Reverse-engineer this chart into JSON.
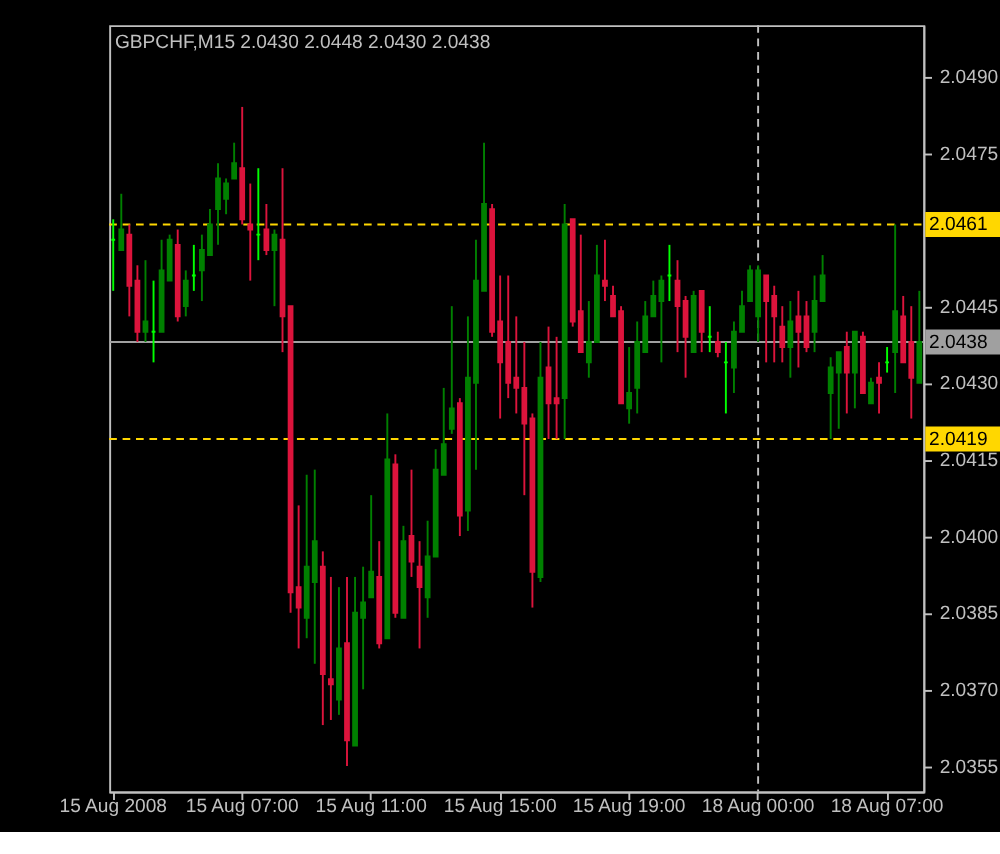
{
  "chart_data": {
    "type": "candlestick",
    "title": "GBPCHF,M15  2.0430 2.0448 2.0430 2.0438",
    "categories": [
      "15 Aug 2008",
      null,
      null,
      null,
      null,
      null,
      null,
      null,
      null,
      null,
      null,
      null,
      null,
      null,
      null,
      null,
      "15 Aug 07:00",
      null,
      null,
      null,
      null,
      null,
      null,
      null,
      null,
      null,
      null,
      null,
      null,
      null,
      null,
      null,
      "15 Aug 11:00",
      null,
      null,
      null,
      null,
      null,
      null,
      null,
      null,
      null,
      null,
      null,
      null,
      null,
      null,
      null,
      "15 Aug 15:00",
      null,
      null,
      null,
      null,
      null,
      null,
      null,
      null,
      null,
      null,
      null,
      null,
      null,
      null,
      null,
      "15 Aug 19:00",
      null,
      null,
      null,
      null,
      null,
      null,
      null,
      null,
      null,
      null,
      null,
      null,
      null,
      null,
      null,
      "18 Aug 00:00",
      null,
      null,
      null,
      null,
      null,
      null,
      null,
      null,
      null,
      null,
      null,
      null,
      null,
      null,
      null,
      "18 Aug 07:00",
      null,
      null,
      null,
      null
    ],
    "ohlc": [
      [
        2.0458,
        2.0462,
        2.0448,
        2.0458
      ],
      [
        2.0456,
        2.0467,
        2.0456,
        2.046
      ],
      [
        2.0459,
        2.0461,
        2.0443,
        2.0449
      ],
      [
        2.045,
        2.0453,
        2.0438,
        2.044
      ],
      [
        2.044,
        2.0454,
        2.0438,
        2.0442
      ],
      [
        2.044,
        2.045,
        2.0434,
        2.044
      ],
      [
        2.044,
        2.0458,
        2.044,
        2.0452
      ],
      [
        2.045,
        2.0459,
        2.045,
        2.0458
      ],
      [
        2.0457,
        2.046,
        2.0442,
        2.0443
      ],
      [
        2.0445,
        2.0452,
        2.0443,
        2.045
      ],
      [
        2.0451,
        2.0457,
        2.0448,
        2.0451
      ],
      [
        2.0452,
        2.0459,
        2.0446,
        2.0456
      ],
      [
        2.0455,
        2.0464,
        2.0455,
        2.0461
      ],
      [
        2.0464,
        2.0473,
        2.0457,
        2.047
      ],
      [
        2.0466,
        2.047,
        2.0463,
        2.0469
      ],
      [
        2.047,
        2.0477,
        2.047,
        2.0473
      ],
      [
        2.0472,
        2.0484,
        2.0461,
        2.0462
      ],
      [
        2.0461,
        2.0469,
        2.045,
        2.046
      ],
      [
        2.0459,
        2.0472,
        2.0454,
        2.0459
      ],
      [
        2.046,
        2.0465,
        2.0455,
        2.0456
      ],
      [
        2.0456,
        2.046,
        2.0445,
        2.0459
      ],
      [
        2.0458,
        2.0472,
        2.0436,
        2.0443
      ],
      [
        2.0445,
        2.0445,
        2.0385,
        2.0389
      ],
      [
        2.039,
        2.0406,
        2.0378,
        2.0386
      ],
      [
        2.0384,
        2.0412,
        2.038,
        2.0394
      ],
      [
        2.0391,
        2.0413,
        2.0375,
        2.0399
      ],
      [
        2.0394,
        2.0397,
        2.0363,
        2.0373
      ],
      [
        2.0372,
        2.0392,
        2.0364,
        2.0371
      ],
      [
        2.0368,
        2.039,
        2.0365,
        2.0378
      ],
      [
        2.0379,
        2.0392,
        2.0355,
        2.036
      ],
      [
        2.0359,
        2.0392,
        2.0359,
        2.0385
      ],
      [
        2.0384,
        2.0394,
        2.037,
        2.0387
      ],
      [
        2.0388,
        2.0408,
        2.0388,
        2.0393
      ],
      [
        2.0392,
        2.0399,
        2.0378,
        2.0379
      ],
      [
        2.038,
        2.0424,
        2.038,
        2.0415
      ],
      [
        2.0414,
        2.0416,
        2.0384,
        2.0385
      ],
      [
        2.0384,
        2.0402,
        2.0384,
        2.0399
      ],
      [
        2.04,
        2.0413,
        2.0392,
        2.0395
      ],
      [
        2.0394,
        2.0399,
        2.0378,
        2.039
      ],
      [
        2.0388,
        2.0403,
        2.0384,
        2.0396
      ],
      [
        2.0396,
        2.0417,
        2.0396,
        2.0413
      ],
      [
        2.0412,
        2.0429,
        2.0412,
        2.0418
      ],
      [
        2.0421,
        2.0445,
        2.042,
        2.0425
      ],
      [
        2.0426,
        2.0427,
        2.04,
        2.0404
      ],
      [
        2.0405,
        2.0443,
        2.0401,
        2.0431
      ],
      [
        2.043,
        2.0458,
        2.0413,
        2.045
      ],
      [
        2.0448,
        2.0477,
        2.0448,
        2.0465
      ],
      [
        2.0464,
        2.0465,
        2.0439,
        2.044
      ],
      [
        2.0442,
        2.0451,
        2.0423,
        2.0434
      ],
      [
        2.0438,
        2.0451,
        2.0427,
        2.043
      ],
      [
        2.0431,
        2.0443,
        2.0424,
        2.0429
      ],
      [
        2.0429,
        2.0438,
        2.0408,
        2.0422
      ],
      [
        2.0423,
        2.0424,
        2.0386,
        2.0393
      ],
      [
        2.0392,
        2.0438,
        2.0391,
        2.0431
      ],
      [
        2.0433,
        2.0441,
        2.0419,
        2.0426
      ],
      [
        2.0427,
        2.0439,
        2.0419,
        2.0426
      ],
      [
        2.0427,
        2.0465,
        2.0419,
        2.0461
      ],
      [
        2.0462,
        2.0462,
        2.0441,
        2.0442
      ],
      [
        2.0444,
        2.0459,
        2.0436,
        2.0436
      ],
      [
        2.0434,
        2.0446,
        2.0431,
        2.0438
      ],
      [
        2.0438,
        2.0457,
        2.0438,
        2.0451
      ],
      [
        2.045,
        2.0458,
        2.0446,
        2.0449
      ],
      [
        2.0447,
        2.0449,
        2.0443,
        2.0443
      ],
      [
        2.0444,
        2.0445,
        2.0426,
        2.0426
      ],
      [
        2.0425,
        2.0437,
        2.0422,
        2.0428
      ],
      [
        2.0429,
        2.0442,
        2.0424,
        2.0438
      ],
      [
        2.0436,
        2.0446,
        2.0436,
        2.0443
      ],
      [
        2.0443,
        2.045,
        2.0443,
        2.0447
      ],
      [
        2.0446,
        2.0451,
        2.0434,
        2.045
      ],
      [
        2.0451,
        2.0457,
        2.0446,
        2.0451
      ],
      [
        2.045,
        2.0454,
        2.0436,
        2.0445
      ],
      [
        2.0446,
        2.0447,
        2.0431,
        2.0439
      ],
      [
        2.0436,
        2.0448,
        2.0436,
        2.0447
      ],
      [
        2.0448,
        2.0448,
        2.0436,
        2.044
      ],
      [
        2.0439,
        2.0445,
        2.0436,
        2.0439
      ],
      [
        2.0438,
        2.044,
        2.0435,
        2.0436
      ],
      [
        2.0434,
        2.0438,
        2.0424,
        2.0434
      ],
      [
        2.0433,
        2.0442,
        2.0428,
        2.044
      ],
      [
        2.044,
        2.0448,
        2.044,
        2.0445
      ],
      [
        2.0446,
        2.0453,
        2.0446,
        2.0452
      ],
      [
        2.0443,
        2.0453,
        2.0438,
        2.0452
      ],
      [
        2.0451,
        2.0451,
        2.0434,
        2.0446
      ],
      [
        2.0447,
        2.0449,
        2.0434,
        2.0443
      ],
      [
        2.0441,
        2.0445,
        2.0434,
        2.0437
      ],
      [
        2.0437,
        2.0446,
        2.0431,
        2.0442
      ],
      [
        2.0443,
        2.0448,
        2.0433,
        2.044
      ],
      [
        2.0443,
        2.0446,
        2.0436,
        2.0437
      ],
      [
        2.044,
        2.0451,
        2.0436,
        2.0446
      ],
      [
        2.0446,
        2.0455,
        2.0446,
        2.0451
      ],
      [
        2.0428,
        2.0435,
        2.0419,
        2.0433
      ],
      [
        2.0432,
        2.0436,
        2.0421,
        2.0436
      ],
      [
        2.0437,
        2.044,
        2.0424,
        2.0432
      ],
      [
        2.0432,
        2.044,
        2.0425,
        2.044
      ],
      [
        2.0439,
        2.044,
        2.0428,
        2.0428
      ],
      [
        2.0426,
        2.0431,
        2.0426,
        2.043
      ],
      [
        2.0431,
        2.0434,
        2.0424,
        2.043
      ],
      [
        2.0434,
        2.0437,
        2.0432,
        2.0434
      ],
      [
        2.0436,
        2.0461,
        2.0428,
        2.0444
      ],
      [
        2.0443,
        2.0447,
        2.0434,
        2.0434
      ],
      [
        2.0438,
        2.0445,
        2.0423,
        2.0431
      ],
      [
        2.043,
        2.0448,
        2.043,
        2.0438
      ]
    ],
    "colors": [
      "#00ff00",
      "#008000",
      "#dc143c",
      "#dc143c",
      "#008000",
      "#00ff00",
      "#008000",
      "#008000",
      "#dc143c",
      "#008000",
      "#00ff00",
      "#008000",
      "#008000",
      "#008000",
      "#008000",
      "#008000",
      "#dc143c",
      "#dc143c",
      "#00ff00",
      "#dc143c",
      "#008000",
      "#dc143c",
      "#dc143c",
      "#dc143c",
      "#008000",
      "#008000",
      "#dc143c",
      "#dc143c",
      "#008000",
      "#dc143c",
      "#008000",
      "#008000",
      "#008000",
      "#dc143c",
      "#008000",
      "#dc143c",
      "#008000",
      "#dc143c",
      "#dc143c",
      "#008000",
      "#008000",
      "#008000",
      "#008000",
      "#dc143c",
      "#008000",
      "#008000",
      "#008000",
      "#dc143c",
      "#dc143c",
      "#dc143c",
      "#dc143c",
      "#dc143c",
      "#dc143c",
      "#008000",
      "#dc143c",
      "#dc143c",
      "#008000",
      "#dc143c",
      "#dc143c",
      "#008000",
      "#008000",
      "#dc143c",
      "#dc143c",
      "#dc143c",
      "#008000",
      "#008000",
      "#008000",
      "#008000",
      "#008000",
      "#00ff00",
      "#dc143c",
      "#dc143c",
      "#008000",
      "#dc143c",
      "#00ff00",
      "#dc143c",
      "#00ff00",
      "#008000",
      "#008000",
      "#008000",
      "#008000",
      "#dc143c",
      "#dc143c",
      "#dc143c",
      "#008000",
      "#dc143c",
      "#dc143c",
      "#008000",
      "#008000",
      "#008000",
      "#008000",
      "#dc143c",
      "#008000",
      "#dc143c",
      "#008000",
      "#dc143c",
      "#00ff00",
      "#008000",
      "#dc143c",
      "#dc143c",
      "#008000"
    ],
    "ylim": [
      2.035,
      2.05
    ],
    "yticks": [
      {
        "value": 2.0355,
        "label": "2.0355"
      },
      {
        "value": 2.037,
        "label": "2.0370"
      },
      {
        "value": 2.0385,
        "label": "2.0385"
      },
      {
        "value": 2.04,
        "label": "2.0400"
      },
      {
        "value": 2.0415,
        "label": "2.0415"
      },
      {
        "value": 2.043,
        "label": "2.0430"
      },
      {
        "value": 2.0445,
        "label": "2.0445"
      },
      {
        "value": 2.0475,
        "label": "2.0475"
      },
      {
        "value": 2.049,
        "label": "2.0490"
      }
    ],
    "ref_lines": [
      {
        "axis": "y",
        "value": 2.0461,
        "label": "2.0461",
        "color": "#ffd700",
        "line_style": "dashed"
      },
      {
        "axis": "y",
        "value": 2.0419,
        "label": "2.0419",
        "color": "#ffd700",
        "line_style": "dashed"
      },
      {
        "axis": "y",
        "value": 2.0438,
        "label": "2.0438",
        "color": "#a0a0a0",
        "line_style": "solid"
      },
      {
        "axis": "x",
        "value": "18 Aug 00:00",
        "color": "#c0c0c0",
        "line_style": "dashed"
      }
    ],
    "grid": false
  }
}
